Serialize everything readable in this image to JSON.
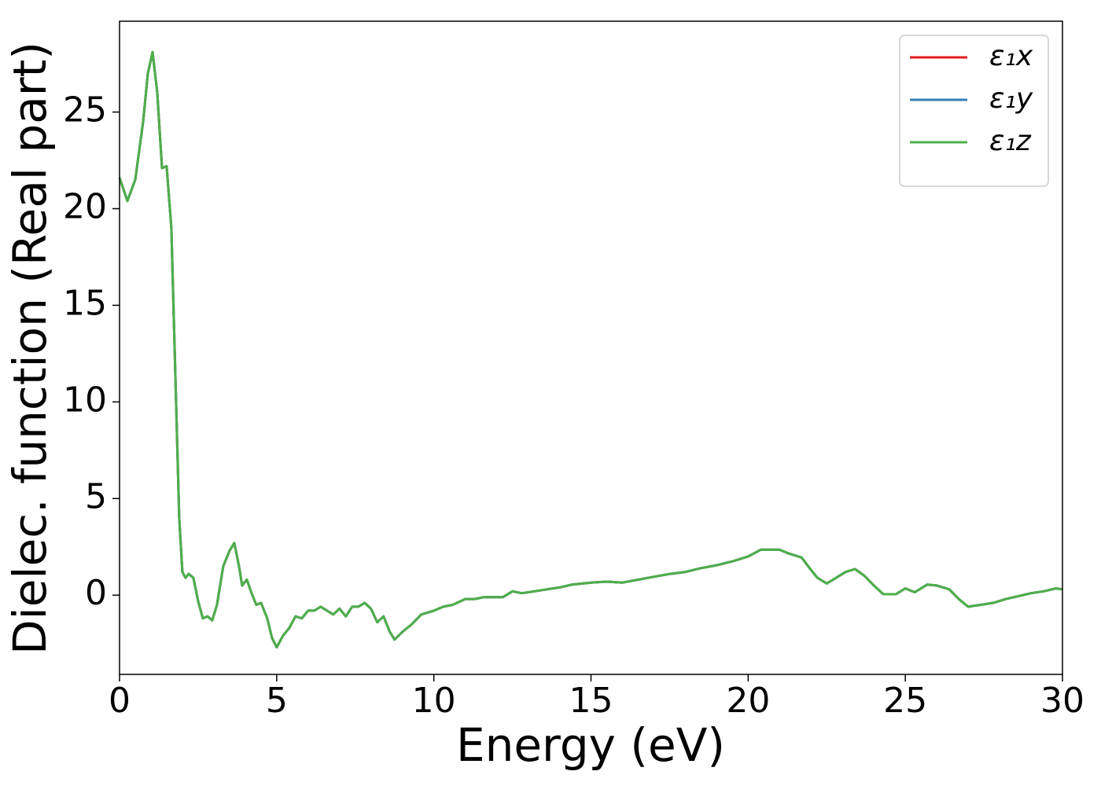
{
  "chart_data": {
    "type": "line",
    "xlabel": "Energy (eV)",
    "ylabel": "Dielec. function (Real part)",
    "x": [
      0,
      0.25,
      0.5,
      0.75,
      0.9,
      1.05,
      1.2,
      1.35,
      1.5,
      1.65,
      1.8,
      1.9,
      2.0,
      2.1,
      2.2,
      2.35,
      2.5,
      2.65,
      2.8,
      2.95,
      3.1,
      3.3,
      3.5,
      3.65,
      3.8,
      3.9,
      4.05,
      4.2,
      4.35,
      4.5,
      4.7,
      4.85,
      5.0,
      5.2,
      5.4,
      5.6,
      5.8,
      6.0,
      6.2,
      6.4,
      6.6,
      6.8,
      7.0,
      7.2,
      7.4,
      7.6,
      7.8,
      8.0,
      8.2,
      8.4,
      8.6,
      8.75,
      9.0,
      9.3,
      9.6,
      10.0,
      10.3,
      10.6,
      11.0,
      11.3,
      11.6,
      12.0,
      12.2,
      12.5,
      12.8,
      13.2,
      13.6,
      14.0,
      14.4,
      15.0,
      15.5,
      16.0,
      16.5,
      17.0,
      17.5,
      18.0,
      18.5,
      19.0,
      19.5,
      20.0,
      20.4,
      20.7,
      21.0,
      21.3,
      21.7,
      22.0,
      22.2,
      22.5,
      22.8,
      23.1,
      23.4,
      23.7,
      24.0,
      24.3,
      24.7,
      25.0,
      25.3,
      25.7,
      26.0,
      26.4,
      26.7,
      27.0,
      27.4,
      27.8,
      28.2,
      28.6,
      29.0,
      29.4,
      29.8,
      30.0
    ],
    "series": [
      {
        "name": "ε₁x",
        "color": "#e41a1c",
        "values": [
          21.6,
          20.4,
          21.5,
          24.5,
          27,
          28.1,
          26,
          22.1,
          22.2,
          19,
          10,
          4,
          1.2,
          0.9,
          1.1,
          0.9,
          -0.3,
          -1.2,
          -1.1,
          -1.3,
          -0.5,
          1.5,
          2.3,
          2.7,
          1.5,
          0.5,
          0.8,
          0.1,
          -0.5,
          -0.4,
          -1.2,
          -2.2,
          -2.7,
          -2.1,
          -1.7,
          -1.1,
          -1.2,
          -0.8,
          -0.8,
          -0.6,
          -0.8,
          -1.0,
          -0.7,
          -1.1,
          -0.6,
          -0.6,
          -0.4,
          -0.7,
          -1.4,
          -1.1,
          -1.9,
          -2.3,
          -1.9,
          -1.5,
          -1.0,
          -0.8,
          -0.6,
          -0.5,
          -0.2,
          -0.2,
          -0.1,
          -0.1,
          -0.1,
          0.2,
          0.1,
          0.2,
          0.3,
          0.4,
          0.55,
          0.65,
          0.7,
          0.65,
          0.8,
          0.95,
          1.1,
          1.2,
          1.4,
          1.55,
          1.75,
          2.0,
          2.35,
          2.35,
          2.35,
          2.15,
          1.95,
          1.3,
          0.9,
          0.6,
          0.9,
          1.2,
          1.35,
          1.0,
          0.5,
          0.05,
          0.05,
          0.35,
          0.15,
          0.55,
          0.5,
          0.3,
          -0.2,
          -0.6,
          -0.5,
          -0.4,
          -0.2,
          -0.05,
          0.1,
          0.2,
          0.35,
          0.3
        ]
      },
      {
        "name": "ε₁y",
        "color": "#377eb8",
        "values": [
          21.6,
          20.4,
          21.5,
          24.5,
          27,
          28.1,
          26,
          22.1,
          22.2,
          19,
          10,
          4,
          1.2,
          0.9,
          1.1,
          0.9,
          -0.3,
          -1.2,
          -1.1,
          -1.3,
          -0.5,
          1.5,
          2.3,
          2.7,
          1.5,
          0.5,
          0.8,
          0.1,
          -0.5,
          -0.4,
          -1.2,
          -2.2,
          -2.7,
          -2.1,
          -1.7,
          -1.1,
          -1.2,
          -0.8,
          -0.8,
          -0.6,
          -0.8,
          -1.0,
          -0.7,
          -1.1,
          -0.6,
          -0.6,
          -0.4,
          -0.7,
          -1.4,
          -1.1,
          -1.9,
          -2.3,
          -1.9,
          -1.5,
          -1.0,
          -0.8,
          -0.6,
          -0.5,
          -0.2,
          -0.2,
          -0.1,
          -0.1,
          -0.1,
          0.2,
          0.1,
          0.2,
          0.3,
          0.4,
          0.55,
          0.65,
          0.7,
          0.65,
          0.8,
          0.95,
          1.1,
          1.2,
          1.4,
          1.55,
          1.75,
          2.0,
          2.35,
          2.35,
          2.35,
          2.15,
          1.95,
          1.3,
          0.9,
          0.6,
          0.9,
          1.2,
          1.35,
          1.0,
          0.5,
          0.05,
          0.05,
          0.35,
          0.15,
          0.55,
          0.5,
          0.3,
          -0.2,
          -0.6,
          -0.5,
          -0.4,
          -0.2,
          -0.05,
          0.1,
          0.2,
          0.35,
          0.3
        ]
      },
      {
        "name": "ε₁z",
        "color": "#4daf4a",
        "values": [
          21.6,
          20.4,
          21.5,
          24.5,
          27,
          28.1,
          26,
          22.1,
          22.2,
          19,
          10,
          4,
          1.2,
          0.9,
          1.1,
          0.9,
          -0.3,
          -1.2,
          -1.1,
          -1.3,
          -0.5,
          1.5,
          2.3,
          2.7,
          1.5,
          0.5,
          0.8,
          0.1,
          -0.5,
          -0.4,
          -1.2,
          -2.2,
          -2.7,
          -2.1,
          -1.7,
          -1.1,
          -1.2,
          -0.8,
          -0.8,
          -0.6,
          -0.8,
          -1.0,
          -0.7,
          -1.1,
          -0.6,
          -0.6,
          -0.4,
          -0.7,
          -1.4,
          -1.1,
          -1.9,
          -2.3,
          -1.9,
          -1.5,
          -1.0,
          -0.8,
          -0.6,
          -0.5,
          -0.2,
          -0.2,
          -0.1,
          -0.1,
          -0.1,
          0.2,
          0.1,
          0.2,
          0.3,
          0.4,
          0.55,
          0.65,
          0.7,
          0.65,
          0.8,
          0.95,
          1.1,
          1.2,
          1.4,
          1.55,
          1.75,
          2.0,
          2.35,
          2.35,
          2.35,
          2.15,
          1.95,
          1.3,
          0.9,
          0.6,
          0.9,
          1.2,
          1.35,
          1.0,
          0.5,
          0.05,
          0.05,
          0.35,
          0.15,
          0.55,
          0.5,
          0.3,
          -0.2,
          -0.6,
          -0.5,
          -0.4,
          -0.2,
          -0.05,
          0.1,
          0.2,
          0.35,
          0.3
        ]
      }
    ],
    "xlim": [
      0,
      30
    ],
    "xticks": [
      0,
      5,
      10,
      15,
      20,
      25,
      30
    ],
    "ylim": [
      -4.1,
      29.7
    ],
    "yticks": [
      0,
      5,
      10,
      15,
      20,
      25
    ],
    "grid": false,
    "legend": "upper right"
  }
}
